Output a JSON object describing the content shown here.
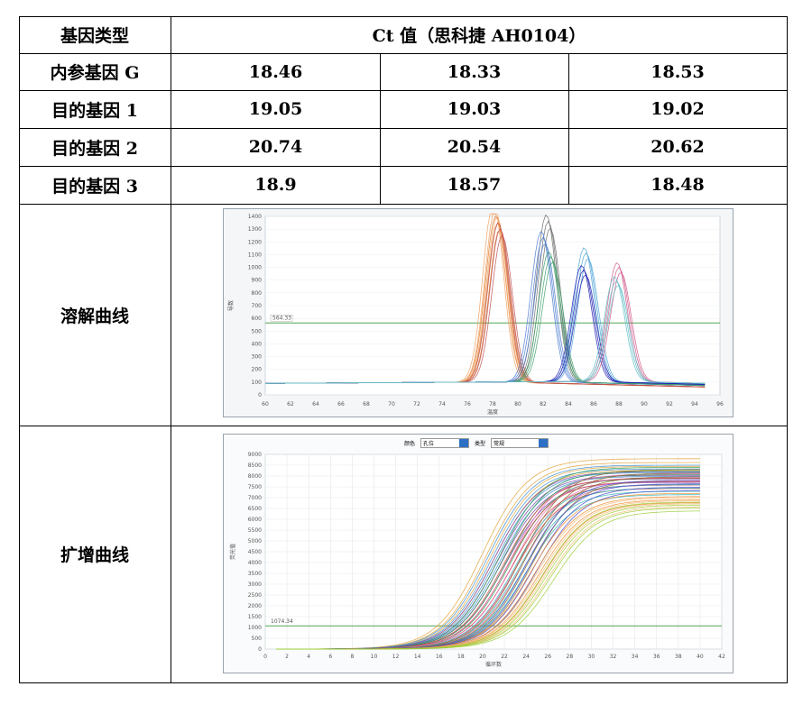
{
  "table": {
    "header": {
      "col1": "基因类型",
      "col2": "Ct 值（思科捷 AH0104）"
    },
    "rows": [
      {
        "label": "内参基因 G",
        "values": [
          "18.46",
          "18.33",
          "18.53"
        ]
      },
      {
        "label": "目的基因 1",
        "values": [
          "19.05",
          "19.03",
          "19.02"
        ]
      },
      {
        "label": "目的基因 2",
        "values": [
          "20.74",
          "20.54",
          "20.62"
        ]
      },
      {
        "label": "目的基因 3",
        "values": [
          "18.9",
          "18.57",
          "18.48"
        ]
      }
    ],
    "melt_label": "溶解曲线",
    "amp_label": "扩增曲线"
  },
  "melt_chart": {
    "threshold_label": "564.33",
    "ylabel": "导数",
    "xlabel": "温度",
    "y_ticks": [
      "0",
      "100",
      "200",
      "300",
      "400",
      "500",
      "600",
      "700",
      "800",
      "900",
      "1000",
      "1100",
      "1200",
      "1300",
      "1400"
    ],
    "x_ticks": [
      "60",
      "62",
      "64",
      "66",
      "68",
      "70",
      "72",
      "74",
      "76",
      "78",
      "80",
      "82",
      "84",
      "86",
      "88",
      "90",
      "92",
      "94",
      "96"
    ]
  },
  "amp_chart": {
    "threshold_label": "1074.34",
    "ylabel": "荧光值",
    "xlabel": "循环数",
    "color_label": "颜色",
    "color_value": "孔位",
    "type_label": "类型",
    "type_value": "常规",
    "y_ticks": [
      "0",
      "500",
      "1000",
      "1500",
      "2000",
      "2500",
      "3000",
      "3500",
      "4000",
      "4500",
      "5000",
      "5500",
      "6000",
      "6500",
      "7000",
      "7500",
      "8000",
      "8500",
      "9000"
    ],
    "x_ticks": [
      "0",
      "2",
      "4",
      "6",
      "8",
      "10",
      "12",
      "14",
      "16",
      "18",
      "20",
      "22",
      "24",
      "26",
      "28",
      "30",
      "32",
      "34",
      "36",
      "38",
      "40",
      "42"
    ]
  },
  "chart_data": [
    {
      "type": "line",
      "name_hint": "melt",
      "xlim": [
        60,
        96
      ],
      "ylim": [
        0,
        1400
      ],
      "threshold": 564.33,
      "peaks": [
        {
          "center": 78.4,
          "height": 1300,
          "color": "#e07a2e"
        },
        {
          "center": 78.2,
          "height": 1410,
          "color": "#f0a060"
        },
        {
          "center": 78.6,
          "height": 1250,
          "color": "#c05050"
        },
        {
          "center": 82.4,
          "height": 1310,
          "color": "#6a6a6a"
        },
        {
          "center": 82.0,
          "height": 1180,
          "color": "#4b7bd0"
        },
        {
          "center": 82.6,
          "height": 1020,
          "color": "#3fa06a"
        },
        {
          "center": 85.4,
          "height": 1050,
          "color": "#4da3d6"
        },
        {
          "center": 85.2,
          "height": 910,
          "color": "#1a1ab0"
        },
        {
          "center": 88.0,
          "height": 930,
          "color": "#d05a8a"
        },
        {
          "center": 87.8,
          "height": 820,
          "color": "#60c0c8"
        }
      ]
    },
    {
      "type": "line",
      "name_hint": "amplification",
      "xlim": [
        0,
        42
      ],
      "ylim": [
        0,
        9000
      ],
      "threshold": 1074.34,
      "curves": [
        {
          "mid": 20.5,
          "top": 8800,
          "color": "#e2a23a"
        },
        {
          "mid": 21.0,
          "top": 8500,
          "color": "#3b8fd4"
        },
        {
          "mid": 21.5,
          "top": 8200,
          "color": "#7b3fb0"
        },
        {
          "mid": 22.0,
          "top": 8400,
          "color": "#2e9a4f"
        },
        {
          "mid": 22.5,
          "top": 7900,
          "color": "#d13b3b"
        },
        {
          "mid": 23.0,
          "top": 8100,
          "color": "#e36bb0"
        },
        {
          "mid": 23.5,
          "top": 7600,
          "color": "#2fb5b5"
        },
        {
          "mid": 24.0,
          "top": 8300,
          "color": "#8a6d2c"
        },
        {
          "mid": 24.5,
          "top": 7800,
          "color": "#4a4ad0"
        },
        {
          "mid": 25.0,
          "top": 7200,
          "color": "#f08a2a"
        },
        {
          "mid": 25.5,
          "top": 7000,
          "color": "#f4c07a"
        },
        {
          "mid": 26.0,
          "top": 6800,
          "color": "#9acd32"
        }
      ]
    }
  ]
}
